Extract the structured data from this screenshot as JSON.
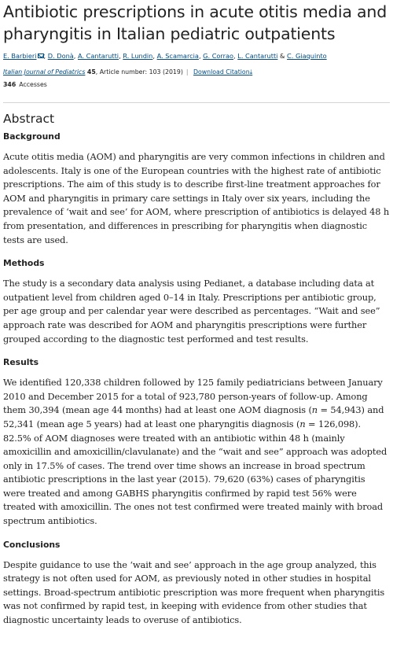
{
  "article": {
    "title": "Antibiotic prescriptions in acute otitis media and pharyngitis in Italian pediatric outpatients",
    "authors": [
      {
        "name": "E. Barbieri",
        "corresponding": true
      },
      {
        "name": "D. Donà"
      },
      {
        "name": "A. Cantarutti"
      },
      {
        "name": "R. Lundin"
      },
      {
        "name": "A. Scamarcia"
      },
      {
        "name": "G. Corrao"
      },
      {
        "name": "L. Cantarutti"
      },
      {
        "name": "C. Giaquinto"
      }
    ],
    "journal": "Italian Journal of Pediatrics",
    "volume": "45",
    "article_number": ", Article number: 103 (2019)",
    "download_citation": "Download Citation",
    "accesses_count": "346",
    "accesses_label": "Accesses"
  },
  "abstract": {
    "heading": "Abstract",
    "background": {
      "heading": "Background",
      "text": "Acute otitis media (AOM) and pharyngitis are very common infections in children and adolescents. Italy is one of the European countries with the highest rate of antibiotic prescriptions. The aim of this study is to describe first-line treatment approaches for AOM and pharyngitis in primary care settings in Italy over six years, including the prevalence of ‘wait and see’ for AOM, where prescription of antibiotics is delayed 48 h from presentation, and differences in prescribing for pharyngitis when diagnostic tests are used."
    },
    "methods": {
      "heading": "Methods",
      "text": "The study is a secondary data analysis using Pedianet, a database including data at outpatient level from children aged 0–14 in Italy. Prescriptions per antibiotic group, per age group and per calendar year were described as percentages. “Wait and see” approach rate was described for AOM and pharyngitis prescriptions were further grouped according to the diagnostic test performed and test results."
    },
    "results": {
      "heading": "Results",
      "part1": "We identified 120,338 children followed by 125 family pediatricians between January 2010 and December 2015 for a total of 923,780 person-years of follow-up. Among them 30,394 (mean age 44 months) had at least one AOM diagnosis (",
      "n_label_1": "n",
      "part2": " = 54,943) and 52,341 (mean age 5 years) had at least one pharyngitis diagnosis (",
      "n_label_2": "n",
      "part3": " = 126,098). 82.5% of AOM diagnoses were treated with an antibiotic within 48 h (mainly amoxicillin and amoxicillin/clavulanate) and the “wait and see” approach was adopted only in 17.5% of cases. The trend over time shows an increase in broad spectrum antibiotic prescriptions in the last year (2015). 79,620 (63%) cases of pharyngitis were treated and among GABHS pharyngitis confirmed by rapid test 56% were treated with amoxicillin. The ones not test confirmed were treated mainly with broad spectrum antibiotics."
    },
    "conclusions": {
      "heading": "Conclusions",
      "text": "Despite guidance to use the ‘wait and see’ approach in the age group analyzed, this strategy is not often used for AOM, as previously noted in other studies in hospital settings. Broad-spectrum antibiotic prescription was more frequent when pharyngitis was not confirmed by rapid test, in keeping with evidence from other studies that diagnostic uncertainty leads to overuse of antibiotics."
    }
  },
  "colors": {
    "link": "#004b83",
    "text": "#222222",
    "rule": "#d5d5d5"
  },
  "icons": {
    "corresponding_author": "envelope-icon",
    "download": "download-arrow-icon"
  }
}
